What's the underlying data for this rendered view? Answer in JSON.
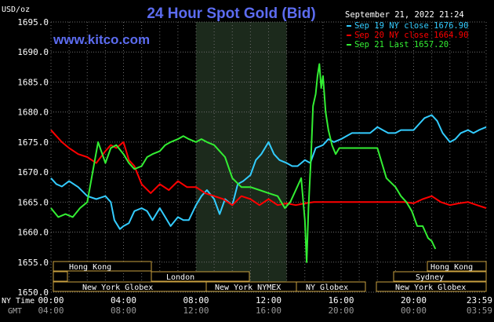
{
  "header": {
    "title": "24 Hour Spot Gold (Bid)",
    "website": "www.kitco.com",
    "unit": "USD/oz",
    "timestamp": "September 21, 2022 21:24"
  },
  "colors": {
    "background": "#000000",
    "title": "#5c6cf0",
    "website": "#5c6cf0",
    "grid": "#6b6b6b",
    "text": "#ffffff",
    "london_session_shade": "#1c2a1c",
    "session_bar_fill": "#000000",
    "session_bar_border": "#c8a040",
    "series_sep19": "#33ccff",
    "series_sep20": "#ff0000",
    "series_sep21": "#33ee33"
  },
  "chart_data": {
    "type": "line",
    "ylim": [
      1650.0,
      1695.0
    ],
    "xlim": [
      0,
      24
    ],
    "y_ticks": [
      "1650.0",
      "1655.0",
      "1660.0",
      "1665.0",
      "1670.0",
      "1675.0",
      "1680.0",
      "1685.0",
      "1690.0",
      "1695.0"
    ],
    "x_ticks_ny": [
      "00:00",
      "04:00",
      "08:00",
      "12:00",
      "16:00",
      "20:00",
      "23:59"
    ],
    "x_ticks_gmt": [
      "04:00",
      "08:00",
      "12:00",
      "16:00",
      "20:00",
      "00:00",
      "03:59"
    ],
    "x_axis_labels": {
      "ny_time": "NY Time",
      "gmt": "GMT"
    },
    "shaded_region": [
      8.0,
      13.0
    ],
    "legend": [
      {
        "label": "Sep 19 NY close 1676.90",
        "series": 0
      },
      {
        "label": "Sep 20 NY close 1664.90",
        "series": 1
      },
      {
        "label": "Sep 21 Last 1657.20",
        "series": 2
      }
    ],
    "series": [
      {
        "x": [
          0,
          0.3,
          0.6,
          1.0,
          1.5,
          2.0,
          2.5,
          3.0,
          3.3,
          3.5,
          3.8,
          4.0,
          4.3,
          4.6,
          5.0,
          5.3,
          5.6,
          6.0,
          6.3,
          6.6,
          7.0,
          7.3,
          7.6,
          8.0,
          8.3,
          8.6,
          9.0,
          9.3,
          9.6,
          10.0,
          10.3,
          10.6,
          11.0,
          11.3,
          11.6,
          12.0,
          12.3,
          12.6,
          13.0,
          13.3,
          13.6,
          14.0,
          14.3,
          14.6,
          15.0,
          15.3,
          15.6,
          16.0,
          16.3,
          16.6,
          17.0,
          17.3,
          17.6,
          18.0,
          18.3,
          18.6,
          19.0,
          19.3,
          19.6,
          20.0,
          20.3,
          20.6,
          21.0,
          21.3,
          21.6,
          22.0,
          22.3,
          22.6,
          23.0,
          23.3,
          23.6,
          24.0
        ],
        "y": [
          1669.0,
          1668.0,
          1667.6,
          1668.5,
          1667.5,
          1666.0,
          1665.5,
          1666.0,
          1665.0,
          1662.0,
          1660.5,
          1661.0,
          1661.5,
          1663.5,
          1664.0,
          1663.5,
          1662.0,
          1664.0,
          1662.5,
          1661.0,
          1662.5,
          1662.0,
          1662.0,
          1664.5,
          1666.0,
          1667.0,
          1665.5,
          1663.0,
          1665.5,
          1664.5,
          1668.0,
          1668.5,
          1669.5,
          1672.0,
          1673.0,
          1675.0,
          1673.0,
          1672.0,
          1671.5,
          1671.0,
          1671.0,
          1672.0,
          1671.5,
          1674.0,
          1674.5,
          1675.5,
          1675.0,
          1675.5,
          1676.0,
          1676.5,
          1676.5,
          1676.5,
          1676.5,
          1677.5,
          1677.0,
          1676.5,
          1676.5,
          1677.0,
          1677.0,
          1677.0,
          1678.0,
          1679.0,
          1679.5,
          1678.5,
          1676.5,
          1675.0,
          1675.5,
          1676.5,
          1677.0,
          1676.5,
          1677.0,
          1677.5
        ]
      },
      {
        "x": [
          0,
          0.3,
          0.6,
          1.0,
          1.5,
          2.0,
          2.5,
          3.0,
          3.3,
          3.6,
          4.0,
          4.3,
          4.6,
          5.0,
          5.5,
          6.0,
          6.5,
          7.0,
          7.5,
          8.0,
          8.5,
          9.0,
          9.5,
          10.0,
          10.5,
          11.0,
          11.5,
          12.0,
          12.5,
          13.0,
          13.5,
          14.0,
          14.5,
          15.0,
          15.5,
          16.0,
          16.5,
          17.0,
          17.5,
          18.0,
          18.5,
          19.0,
          19.5,
          20.0,
          20.5,
          21.0,
          21.5,
          22.0,
          22.5,
          23.0,
          23.5,
          24.0
        ],
        "y": [
          1677.0,
          1676.0,
          1675.0,
          1674.0,
          1673.0,
          1672.5,
          1671.5,
          1673.5,
          1674.5,
          1674.0,
          1675.0,
          1672.0,
          1671.0,
          1668.0,
          1666.5,
          1668.0,
          1667.0,
          1668.5,
          1667.5,
          1667.5,
          1666.5,
          1666.0,
          1665.5,
          1664.5,
          1666.0,
          1665.5,
          1664.5,
          1665.5,
          1664.5,
          1664.8,
          1664.5,
          1664.8,
          1665.0,
          1665.0,
          1665.0,
          1665.0,
          1665.0,
          1665.0,
          1665.0,
          1665.0,
          1665.0,
          1665.0,
          1665.0,
          1664.8,
          1665.5,
          1666.0,
          1665.0,
          1664.5,
          1664.8,
          1665.0,
          1664.5,
          1664.0
        ]
      },
      {
        "x": [
          0,
          0.4,
          0.8,
          1.2,
          1.6,
          2.0,
          2.3,
          2.6,
          3.0,
          3.3,
          3.6,
          4.0,
          4.3,
          4.6,
          5.0,
          5.3,
          5.6,
          6.0,
          6.3,
          6.6,
          7.0,
          7.3,
          7.6,
          8.0,
          8.3,
          8.6,
          9.0,
          9.3,
          9.6,
          10.0,
          10.5,
          11.0,
          11.5,
          12.0,
          12.5,
          12.9,
          13.2,
          13.5,
          13.8,
          14.0,
          14.1,
          14.2,
          14.35,
          14.45,
          14.6,
          14.7,
          14.8,
          14.9,
          15.0,
          15.15,
          15.3,
          15.5,
          15.7,
          15.9,
          16.1,
          16.3,
          16.5,
          16.8,
          17.0,
          17.3,
          17.6,
          18.0,
          18.5,
          19.0,
          19.3,
          19.6,
          19.9,
          20.2,
          20.5,
          20.8,
          21.0,
          21.2
        ],
        "y": [
          1664.0,
          1662.5,
          1663.0,
          1662.5,
          1664.0,
          1665.0,
          1670.0,
          1675.0,
          1671.5,
          1674.0,
          1674.5,
          1673.0,
          1671.5,
          1670.5,
          1671.0,
          1672.5,
          1673.0,
          1673.5,
          1674.5,
          1675.0,
          1675.5,
          1676.0,
          1675.5,
          1675.0,
          1675.5,
          1675.0,
          1674.5,
          1673.5,
          1672.5,
          1669.0,
          1667.5,
          1667.5,
          1667.0,
          1666.5,
          1666.0,
          1664.0,
          1665.0,
          1667.0,
          1669.0,
          1662.0,
          1655.0,
          1664.0,
          1673.0,
          1681.0,
          1683.0,
          1686.0,
          1688.0,
          1684.0,
          1686.0,
          1680.0,
          1677.0,
          1674.5,
          1673.0,
          1674.0,
          1674.0,
          1674.0,
          1674.0,
          1674.0,
          1674.0,
          1674.0,
          1674.0,
          1674.0,
          1669.0,
          1667.5,
          1666.0,
          1665.0,
          1663.5,
          1661.0,
          1661.0,
          1659.0,
          1658.5,
          1657.2
        ]
      }
    ]
  },
  "sessions": {
    "hong_kong_top": "Hong Kong",
    "london": "London",
    "new_york_globex_left": "New York Globex",
    "new_york_nymex": "New York NYMEX",
    "ny_globex": "NY Globex",
    "hong_kong_right": "Hong Kong",
    "sydney": "Sydney",
    "new_york_globex_right": "New York Globex"
  }
}
